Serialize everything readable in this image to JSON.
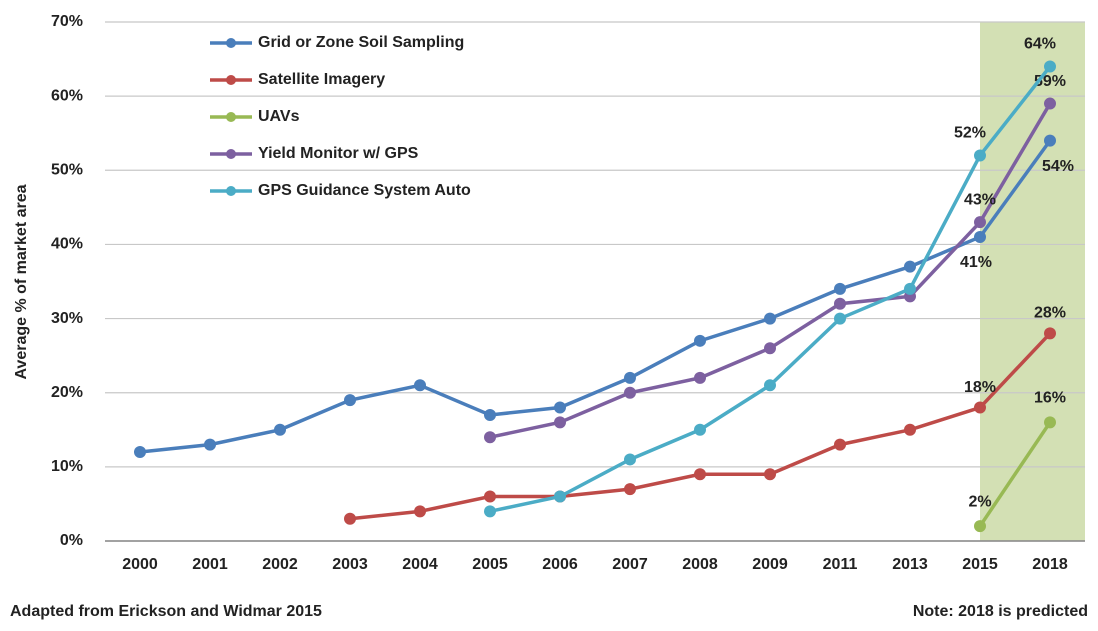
{
  "chart_data": {
    "type": "line",
    "y_label": "Average % of market area",
    "source": "Adapted from Erickson and Widmar 2015",
    "note": "Note: 2018 is predicted",
    "categories": [
      "2000",
      "2001",
      "2002",
      "2003",
      "2004",
      "2005",
      "2006",
      "2007",
      "2008",
      "2009",
      "2011",
      "2013",
      "2015",
      "2018"
    ],
    "ylim": [
      0,
      70
    ],
    "yticks": [
      {
        "value": 0,
        "label": "0%"
      },
      {
        "value": 10,
        "label": "10%"
      },
      {
        "value": 20,
        "label": "20%"
      },
      {
        "value": 30,
        "label": "30%"
      },
      {
        "value": 40,
        "label": "40%"
      },
      {
        "value": 50,
        "label": "50%"
      },
      {
        "value": 60,
        "label": "60%"
      },
      {
        "value": 70,
        "label": "70%"
      }
    ],
    "grid": true,
    "legend": "top-left",
    "series": [
      {
        "name": "Grid or Zone Soil Sampling",
        "color": "#4a7ebb",
        "values": [
          12,
          13,
          15,
          19,
          21,
          17,
          18,
          22,
          27,
          30,
          34,
          37,
          41,
          54
        ],
        "value_labels": [
          null,
          null,
          null,
          null,
          null,
          null,
          null,
          null,
          null,
          null,
          null,
          null,
          "41%",
          "54%"
        ]
      },
      {
        "name": "Satellite Imagery",
        "color": "#be4b48",
        "values": [
          null,
          null,
          null,
          3,
          4,
          6,
          6,
          7,
          9,
          9,
          13,
          15,
          18,
          28
        ],
        "value_labels": [
          null,
          null,
          null,
          null,
          null,
          null,
          null,
          null,
          null,
          null,
          null,
          null,
          "18%",
          "28%"
        ]
      },
      {
        "name": "UAVs",
        "color": "#98b954",
        "values": [
          null,
          null,
          null,
          null,
          null,
          null,
          null,
          null,
          null,
          null,
          null,
          null,
          2,
          16
        ],
        "value_labels": [
          null,
          null,
          null,
          null,
          null,
          null,
          null,
          null,
          null,
          null,
          null,
          null,
          "2%",
          "16%"
        ]
      },
      {
        "name": "Yield Monitor w/ GPS",
        "color": "#7d60a0",
        "values": [
          null,
          null,
          null,
          null,
          null,
          14,
          16,
          20,
          22,
          26,
          32,
          33,
          43,
          59
        ],
        "value_labels": [
          null,
          null,
          null,
          null,
          null,
          null,
          null,
          null,
          null,
          null,
          null,
          null,
          "43%",
          "59%"
        ]
      },
      {
        "name": "GPS Guidance System Auto",
        "color": "#4bacc6",
        "values": [
          null,
          null,
          null,
          null,
          null,
          4,
          6,
          11,
          15,
          21,
          30,
          34,
          52,
          64
        ],
        "value_labels": [
          null,
          null,
          null,
          null,
          null,
          null,
          null,
          null,
          null,
          null,
          null,
          null,
          "52%",
          "64%"
        ]
      }
    ]
  }
}
